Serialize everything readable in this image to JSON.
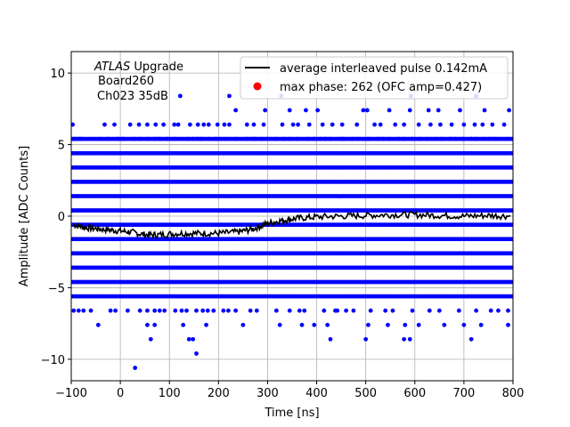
{
  "chart_data": {
    "type": "scatter",
    "xlabel": "Time [ns]",
    "ylabel": "Amplitude [ADC Counts]",
    "xlim": [
      -100,
      800
    ],
    "ylim": [
      -11.5,
      11.5
    ],
    "xticks": [
      -100,
      0,
      100,
      200,
      300,
      400,
      500,
      600,
      700,
      800
    ],
    "yticks": [
      -10,
      -5,
      0,
      5,
      10
    ],
    "xtick_labels": [
      "−100",
      "0",
      "100",
      "200",
      "300",
      "400",
      "500",
      "600",
      "700",
      "800"
    ],
    "ytick_labels": [
      "−10",
      "−5",
      "0",
      "5",
      "10"
    ],
    "grid": true,
    "legend_position": "upper right",
    "annotation": {
      "line1_italic": "ATLAS",
      "line1_rest": " Upgrade",
      "line2": "Board260",
      "line3": "Ch023 35dB"
    },
    "legend": [
      {
        "label": "average interleaved pulse 0.142mA",
        "marker": "line",
        "color": "#000000"
      },
      {
        "label": "max phase: 262 (OFC amp=0.427)",
        "marker": "dot",
        "color": "#ff0000"
      }
    ],
    "dense_levels": [
      -5.6,
      -4.6,
      -3.6,
      -2.6,
      -1.6,
      -0.6,
      0.4,
      1.4,
      2.4,
      3.4,
      4.4,
      5.4
    ],
    "average_pulse": {
      "color": "#000000",
      "points": [
        [
          -95,
          -0.6
        ],
        [
          -70,
          -0.8
        ],
        [
          -40,
          -0.9
        ],
        [
          -10,
          -1.0
        ],
        [
          20,
          -1.1
        ],
        [
          50,
          -1.3
        ],
        [
          80,
          -1.3
        ],
        [
          120,
          -1.2
        ],
        [
          160,
          -1.2
        ],
        [
          200,
          -1.2
        ],
        [
          240,
          -1.1
        ],
        [
          270,
          -0.9
        ],
        [
          300,
          -0.5
        ],
        [
          330,
          -0.3
        ],
        [
          360,
          -0.15
        ],
        [
          400,
          -0.05
        ],
        [
          450,
          0.0
        ],
        [
          500,
          0.05
        ],
        [
          550,
          0.1
        ],
        [
          600,
          0.1
        ],
        [
          650,
          0.05
        ],
        [
          700,
          0.0
        ],
        [
          750,
          0.05
        ],
        [
          795,
          0.0
        ]
      ]
    },
    "series": [
      {
        "color": "#0000ff",
        "points": [
          [
            -93,
            5.4
          ],
          [
            -85,
            5.4
          ],
          [
            -80,
            5.4
          ],
          [
            -40,
            5.4
          ],
          [
            -25,
            5.4
          ],
          [
            -5,
            5.4
          ],
          [
            5,
            5.4
          ],
          [
            28,
            5.4
          ],
          [
            40,
            5.4
          ],
          [
            55,
            5.4
          ],
          [
            72,
            5.4
          ],
          [
            80,
            5.4
          ],
          [
            95,
            5.4
          ],
          [
            110,
            5.4
          ],
          [
            138,
            5.4
          ],
          [
            148,
            5.4
          ],
          [
            158,
            5.4
          ],
          [
            165,
            5.4
          ],
          [
            180,
            5.4
          ],
          [
            195,
            5.4
          ],
          [
            215,
            5.4
          ],
          [
            235,
            5.4
          ],
          [
            258,
            5.4
          ],
          [
            268,
            5.4
          ],
          [
            275,
            5.4
          ],
          [
            288,
            5.4
          ],
          [
            300,
            5.4
          ],
          [
            318,
            5.4
          ],
          [
            335,
            5.4
          ],
          [
            345,
            5.4
          ],
          [
            360,
            5.4
          ],
          [
            383,
            5.4
          ],
          [
            395,
            5.4
          ],
          [
            408,
            5.4
          ],
          [
            418,
            5.4
          ],
          [
            428,
            5.4
          ],
          [
            448,
            5.4
          ],
          [
            455,
            5.4
          ],
          [
            472,
            5.4
          ],
          [
            485,
            5.4
          ],
          [
            505,
            5.4
          ],
          [
            525,
            5.4
          ],
          [
            535,
            5.4
          ],
          [
            548,
            5.4
          ],
          [
            568,
            5.4
          ],
          [
            578,
            5.4
          ],
          [
            595,
            5.4
          ],
          [
            612,
            5.4
          ],
          [
            625,
            5.4
          ],
          [
            645,
            5.4
          ],
          [
            655,
            5.4
          ],
          [
            672,
            5.4
          ],
          [
            682,
            5.4
          ],
          [
            698,
            5.4
          ],
          [
            715,
            5.4
          ],
          [
            725,
            5.4
          ],
          [
            742,
            5.4
          ],
          [
            752,
            5.4
          ],
          [
            760,
            5.4
          ],
          [
            765,
            5.4
          ],
          [
            788,
            5.4
          ],
          [
            -95,
            4.4
          ],
          [
            -75,
            4.4
          ],
          [
            -65,
            4.4
          ],
          [
            -55,
            4.4
          ],
          [
            -30,
            4.4
          ],
          [
            -15,
            4.4
          ],
          [
            0,
            4.4
          ],
          [
            25,
            4.4
          ],
          [
            40,
            4.4
          ],
          [
            55,
            4.4
          ],
          [
            65,
            4.4
          ],
          [
            80,
            4.4
          ],
          [
            90,
            4.4
          ],
          [
            105,
            4.4
          ],
          [
            115,
            4.4
          ],
          [
            130,
            4.4
          ],
          [
            145,
            4.4
          ],
          [
            160,
            4.4
          ],
          [
            170,
            4.4
          ],
          [
            185,
            4.4
          ],
          [
            200,
            4.4
          ],
          [
            210,
            4.4
          ],
          [
            225,
            4.4
          ],
          [
            240,
            4.4
          ],
          [
            255,
            4.4
          ],
          [
            265,
            4.4
          ],
          [
            280,
            4.4
          ],
          [
            290,
            4.4
          ],
          [
            305,
            4.4
          ],
          [
            315,
            4.4
          ],
          [
            330,
            4.4
          ],
          [
            340,
            4.4
          ],
          [
            355,
            4.4
          ],
          [
            370,
            4.4
          ],
          [
            385,
            4.4
          ],
          [
            400,
            4.4
          ],
          [
            410,
            4.4
          ],
          [
            425,
            4.4
          ],
          [
            440,
            4.4
          ],
          [
            455,
            4.4
          ],
          [
            470,
            4.4
          ],
          [
            480,
            4.4
          ],
          [
            495,
            4.4
          ],
          [
            510,
            4.4
          ],
          [
            520,
            4.4
          ],
          [
            535,
            4.4
          ],
          [
            550,
            4.4
          ],
          [
            565,
            4.4
          ],
          [
            580,
            4.4
          ],
          [
            590,
            4.4
          ],
          [
            605,
            4.4
          ],
          [
            620,
            4.4
          ],
          [
            635,
            4.4
          ],
          [
            645,
            4.4
          ],
          [
            660,
            4.4
          ],
          [
            675,
            4.4
          ],
          [
            690,
            4.4
          ],
          [
            700,
            4.4
          ],
          [
            715,
            4.4
          ],
          [
            730,
            4.4
          ],
          [
            740,
            4.4
          ],
          [
            755,
            4.4
          ],
          [
            770,
            4.4
          ],
          [
            785,
            4.4
          ],
          [
            -95,
            -6.6
          ],
          [
            -85,
            -6.6
          ],
          [
            -75,
            -6.6
          ],
          [
            -60,
            -6.6
          ],
          [
            -20,
            -6.6
          ],
          [
            -10,
            -6.6
          ],
          [
            15,
            -6.6
          ],
          [
            40,
            -6.6
          ],
          [
            55,
            -6.6
          ],
          [
            70,
            -6.6
          ],
          [
            80,
            -6.6
          ],
          [
            90,
            -6.6
          ],
          [
            112,
            -6.6
          ],
          [
            125,
            -6.6
          ],
          [
            135,
            -6.6
          ],
          [
            155,
            -6.6
          ],
          [
            168,
            -6.6
          ],
          [
            178,
            -6.6
          ],
          [
            190,
            -6.6
          ],
          [
            210,
            -6.6
          ],
          [
            220,
            -6.6
          ],
          [
            235,
            -6.6
          ],
          [
            265,
            -6.6
          ],
          [
            278,
            -6.6
          ],
          [
            318,
            -6.6
          ],
          [
            345,
            -6.6
          ],
          [
            365,
            -6.6
          ],
          [
            375,
            -6.6
          ],
          [
            415,
            -6.6
          ],
          [
            438,
            -6.6
          ],
          [
            442,
            -6.6
          ],
          [
            460,
            -6.6
          ],
          [
            475,
            -6.6
          ],
          [
            510,
            -6.6
          ],
          [
            540,
            -6.6
          ],
          [
            555,
            -6.6
          ],
          [
            595,
            -6.6
          ],
          [
            630,
            -6.6
          ],
          [
            650,
            -6.6
          ],
          [
            690,
            -6.6
          ],
          [
            725,
            -6.6
          ],
          [
            755,
            -6.6
          ],
          [
            770,
            -6.6
          ],
          [
            790,
            -6.6
          ],
          [
            -45,
            -7.6
          ],
          [
            55,
            -7.6
          ],
          [
            70,
            -7.6
          ],
          [
            128,
            -7.6
          ],
          [
            175,
            -7.6
          ],
          [
            250,
            -7.6
          ],
          [
            325,
            -7.6
          ],
          [
            370,
            -7.6
          ],
          [
            395,
            -7.6
          ],
          [
            422,
            -7.6
          ],
          [
            505,
            -7.6
          ],
          [
            545,
            -7.6
          ],
          [
            580,
            -7.6
          ],
          [
            608,
            -7.6
          ],
          [
            660,
            -7.6
          ],
          [
            700,
            -7.6
          ],
          [
            735,
            -7.6
          ],
          [
            790,
            -7.6
          ],
          [
            62,
            -8.6
          ],
          [
            140,
            -8.6
          ],
          [
            148,
            -8.6
          ],
          [
            428,
            -8.6
          ],
          [
            500,
            -8.6
          ],
          [
            578,
            -8.6
          ],
          [
            590,
            -8.6
          ],
          [
            715,
            -8.6
          ],
          [
            155,
            -9.6
          ],
          [
            30,
            -10.6
          ],
          [
            -97,
            6.4
          ],
          [
            -32,
            6.4
          ],
          [
            -12,
            6.4
          ],
          [
            20,
            6.4
          ],
          [
            38,
            6.4
          ],
          [
            55,
            6.4
          ],
          [
            72,
            6.4
          ],
          [
            88,
            6.4
          ],
          [
            110,
            6.4
          ],
          [
            118,
            6.4
          ],
          [
            142,
            6.4
          ],
          [
            158,
            6.4
          ],
          [
            170,
            6.4
          ],
          [
            180,
            6.4
          ],
          [
            198,
            6.4
          ],
          [
            212,
            6.4
          ],
          [
            222,
            6.4
          ],
          [
            258,
            6.4
          ],
          [
            272,
            6.4
          ],
          [
            292,
            6.4
          ],
          [
            330,
            6.4
          ],
          [
            352,
            6.4
          ],
          [
            362,
            6.4
          ],
          [
            385,
            6.4
          ],
          [
            412,
            6.4
          ],
          [
            432,
            6.4
          ],
          [
            452,
            6.4
          ],
          [
            482,
            6.4
          ],
          [
            518,
            6.4
          ],
          [
            530,
            6.4
          ],
          [
            560,
            6.4
          ],
          [
            578,
            6.4
          ],
          [
            608,
            6.4
          ],
          [
            632,
            6.4
          ],
          [
            652,
            6.4
          ],
          [
            675,
            6.4
          ],
          [
            700,
            6.4
          ],
          [
            722,
            6.4
          ],
          [
            738,
            6.4
          ],
          [
            758,
            6.4
          ],
          [
            782,
            6.4
          ],
          [
            235,
            7.4
          ],
          [
            295,
            7.4
          ],
          [
            345,
            7.4
          ],
          [
            378,
            7.4
          ],
          [
            402,
            7.4
          ],
          [
            495,
            7.4
          ],
          [
            503,
            7.4
          ],
          [
            548,
            7.4
          ],
          [
            590,
            7.4
          ],
          [
            628,
            7.4
          ],
          [
            648,
            7.4
          ],
          [
            692,
            7.4
          ],
          [
            742,
            7.4
          ],
          [
            792,
            7.4
          ],
          [
            122,
            8.4
          ],
          [
            222,
            8.4
          ],
          [
            328,
            8.4
          ],
          [
            592,
            8.4
          ],
          [
            725,
            8.4
          ]
        ]
      }
    ]
  }
}
